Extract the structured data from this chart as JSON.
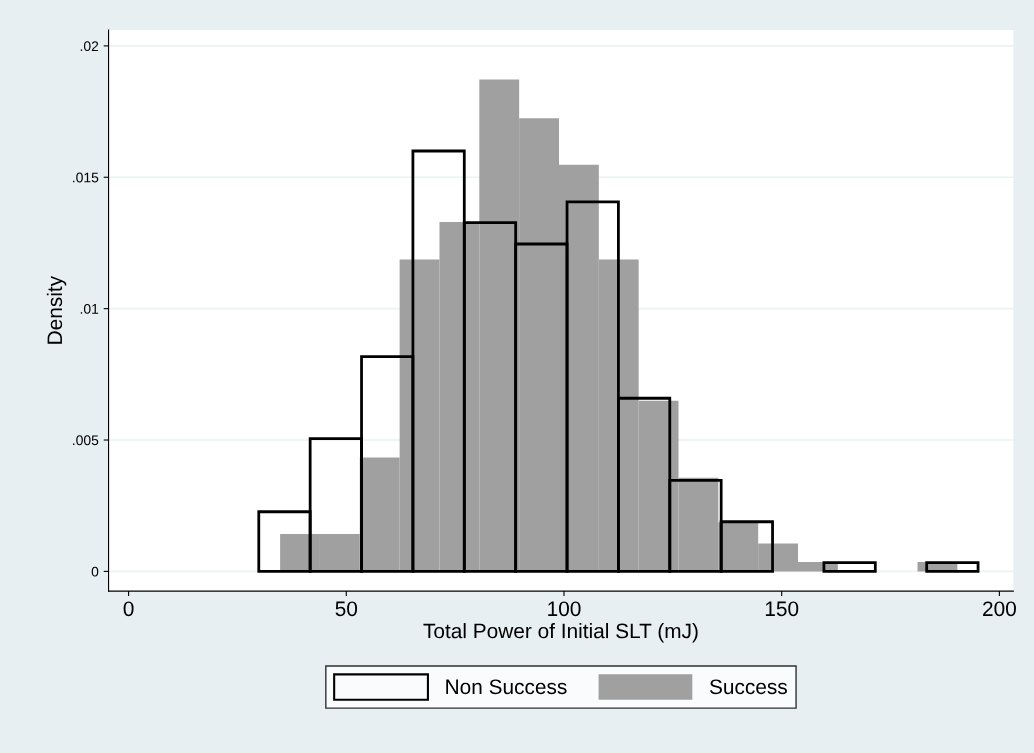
{
  "chart_data": {
    "type": "bar",
    "xlabel": "Total Power of Initial SLT (mJ)",
    "ylabel": "Density",
    "xlim": [
      -4.6,
      203.2
    ],
    "ylim": [
      -0.00075,
      0.0206
    ],
    "xticks": [
      0,
      50,
      100,
      150,
      200
    ],
    "yticks": [
      {
        "value": 0,
        "label": "0"
      },
      {
        "value": 0.005,
        "label": ".005"
      },
      {
        "value": 0.01,
        "label": ".01"
      },
      {
        "value": 0.015,
        "label": ".015"
      },
      {
        "value": 0.02,
        "label": ".02"
      }
    ],
    "grid": "y",
    "legend": "bottom",
    "series": [
      {
        "name": "Success",
        "color": "#a0a0a0",
        "x": [
          39.375,
          48.525,
          57.675,
          66.825,
          75.975,
          85.125,
          94.275,
          103.425,
          112.575,
          121.725,
          130.875,
          140.025,
          149.175,
          158.325,
          167.475,
          176.625,
          185.775
        ],
        "values": [
          0.00142,
          0.00142,
          0.00433,
          0.01187,
          0.0133,
          0.01872,
          0.01725,
          0.01548,
          0.01187,
          0.00649,
          0.00356,
          0.00187,
          0.00106,
          0.00036,
          0,
          0,
          0.00036
        ]
      },
      {
        "name": "Non Success",
        "color": "#000000",
        "x": [
          35.8,
          47.6,
          59.4,
          71.2,
          83,
          94.8,
          106.6,
          118.4,
          130.2,
          142,
          153.8,
          165.6,
          177.4,
          189.2
        ],
        "values": [
          0.00227,
          0.00505,
          0.00817,
          0.016,
          0.01327,
          0.01246,
          0.01406,
          0.00659,
          0.00346,
          0.00189,
          0,
          0.00033,
          0,
          0.00033
        ]
      }
    ]
  }
}
